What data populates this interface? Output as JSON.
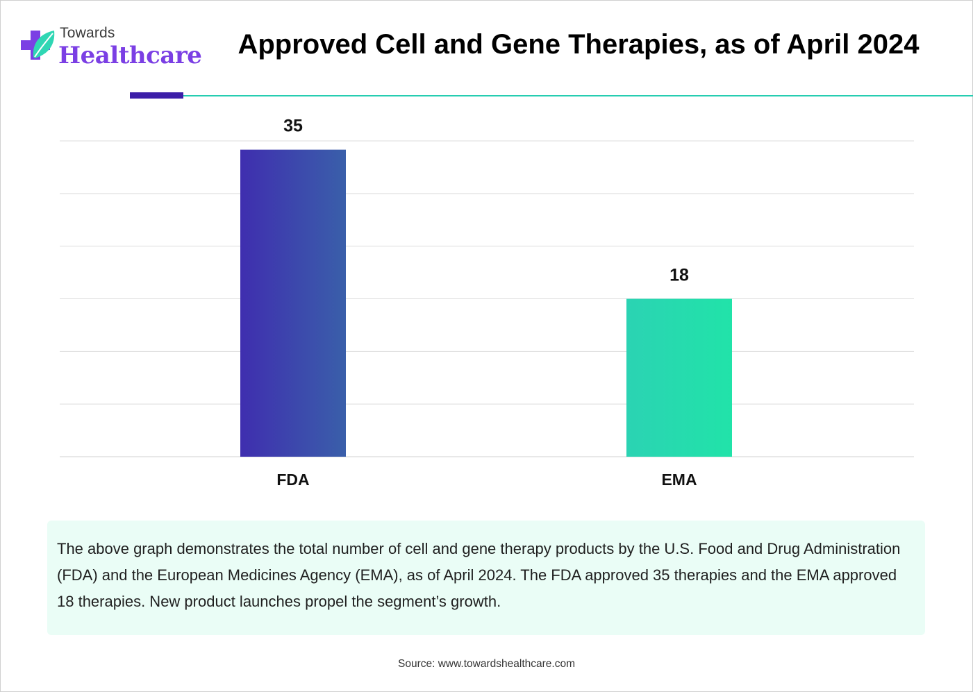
{
  "header": {
    "logo_top": "Towards",
    "logo_main": "Healthcare",
    "title": "Approved Cell and Gene Therapies, as of April 2024"
  },
  "colors": {
    "brand_purple": "#7b3fe4",
    "accent_navy": "#3c1ea8",
    "accent_teal": "#26cdb1",
    "bar_fda_start": "#3f2eaf",
    "bar_fda_end": "#3a5faa",
    "bar_ema_start": "#2bd3b3",
    "bar_ema_end": "#21e3a9",
    "caption_bg": "#eafdf6"
  },
  "chart_data": {
    "type": "bar",
    "categories": [
      "FDA",
      "EMA"
    ],
    "values": [
      35,
      18
    ],
    "data_labels": [
      "35",
      "18"
    ],
    "title": "Approved Cell and Gene Therapies, as of April 2024",
    "xlabel": "",
    "ylabel": "",
    "ylim": [
      0,
      36
    ],
    "grid": true,
    "legend": "none"
  },
  "caption": {
    "text": "The above graph demonstrates the total number of cell and gene therapy products by the U.S. Food and Drug Administration (FDA) and the European Medicines Agency (EMA), as of April 2024. The FDA approved 35 therapies and the EMA approved 18 therapies. New product launches propel the segment’s growth."
  },
  "source": "Source: www.towardshealthcare.com"
}
